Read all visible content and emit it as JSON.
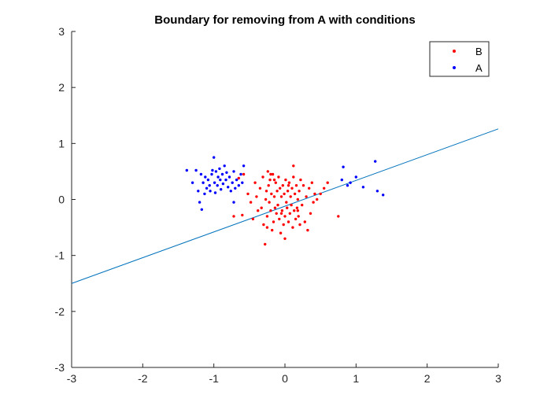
{
  "chart_data": {
    "type": "scatter",
    "title": "Boundary for removing from A with conditions",
    "xlabel": "",
    "ylabel": "",
    "xlim": [
      -3,
      3
    ],
    "ylim": [
      -3,
      3
    ],
    "x_ticks": [
      "-3",
      "-2",
      "-1",
      "0",
      "1",
      "2",
      "3"
    ],
    "y_ticks": [
      "3",
      "2",
      "1",
      "0",
      "-1",
      "-2",
      "-3"
    ],
    "grid": false,
    "legend_position": "top-right",
    "colors": {
      "B": "#ff0000",
      "A": "#0000ff",
      "line": "#0072bd",
      "axes": "#262626"
    },
    "series": [
      {
        "name": "B",
        "color": "#ff0000",
        "points": [
          [
            -0.72,
            -0.3
          ],
          [
            -0.65,
            0.38
          ],
          [
            -0.6,
            -0.28
          ],
          [
            -0.58,
            0.45
          ],
          [
            -0.52,
            0.1
          ],
          [
            -0.48,
            -0.05
          ],
          [
            -0.45,
            -0.35
          ],
          [
            -0.42,
            0.3
          ],
          [
            -0.4,
            0.05
          ],
          [
            -0.38,
            -0.2
          ],
          [
            -0.35,
            0.2
          ],
          [
            -0.33,
            -0.15
          ],
          [
            -0.31,
            0.4
          ],
          [
            -0.3,
            -0.45
          ],
          [
            -0.28,
            -0.8
          ],
          [
            -0.27,
            0.0
          ],
          [
            -0.26,
            0.15
          ],
          [
            -0.25,
            -0.3
          ],
          [
            -0.24,
            0.5
          ],
          [
            -0.23,
            0.25
          ],
          [
            -0.22,
            -0.05
          ],
          [
            -0.21,
            0.35
          ],
          [
            -0.2,
            -0.2
          ],
          [
            -0.19,
            0.1
          ],
          [
            -0.18,
            -0.55
          ],
          [
            -0.17,
            0.45
          ],
          [
            -0.16,
            -0.4
          ],
          [
            -0.15,
            0.05
          ],
          [
            -0.14,
            -0.15
          ],
          [
            -0.13,
            0.3
          ],
          [
            -0.12,
            -0.25
          ],
          [
            -0.11,
            0.15
          ],
          [
            -0.1,
            -0.1
          ],
          [
            -0.09,
            0.4
          ],
          [
            -0.08,
            -0.35
          ],
          [
            -0.07,
            0.2
          ],
          [
            -0.06,
            -0.6
          ],
          [
            -0.05,
            0.05
          ],
          [
            -0.04,
            -0.2
          ],
          [
            -0.03,
            0.25
          ],
          [
            -0.02,
            -0.45
          ],
          [
            -0.01,
            0.1
          ],
          [
            0.0,
            -0.3
          ],
          [
            0.01,
            0.35
          ],
          [
            0.02,
            -0.05
          ],
          [
            0.03,
            -0.15
          ],
          [
            0.04,
            0.15
          ],
          [
            0.05,
            -0.4
          ],
          [
            0.06,
            0.3
          ],
          [
            0.07,
            -0.25
          ],
          [
            0.08,
            0.05
          ],
          [
            0.09,
            -0.1
          ],
          [
            0.1,
            0.2
          ],
          [
            0.11,
            -0.5
          ],
          [
            0.12,
            0.4
          ],
          [
            0.13,
            -0.2
          ],
          [
            0.14,
            0.1
          ],
          [
            0.15,
            -0.35
          ],
          [
            0.16,
            0.25
          ],
          [
            0.17,
            -0.15
          ],
          [
            0.18,
            0.0
          ],
          [
            0.19,
            -0.3
          ],
          [
            0.2,
            0.15
          ],
          [
            0.21,
            -0.45
          ],
          [
            0.22,
            0.35
          ],
          [
            0.24,
            -0.1
          ],
          [
            0.26,
            0.25
          ],
          [
            0.28,
            -0.4
          ],
          [
            0.3,
            0.05
          ],
          [
            0.32,
            -0.55
          ],
          [
            0.34,
            0.2
          ],
          [
            0.36,
            -0.25
          ],
          [
            0.38,
            0.3
          ],
          [
            0.4,
            -0.05
          ],
          [
            0.42,
            0.1
          ],
          [
            0.45,
            0.0
          ],
          [
            0.5,
            0.1
          ],
          [
            0.55,
            0.2
          ],
          [
            0.6,
            0.3
          ],
          [
            0.75,
            -0.3
          ],
          [
            -0.2,
            0.45
          ],
          [
            -0.25,
            -0.5
          ],
          [
            0.0,
            -0.7
          ],
          [
            0.12,
            0.6
          ],
          [
            0.05,
            0.25
          ],
          [
            -0.05,
            -0.25
          ],
          [
            0.18,
            -0.2
          ],
          [
            -0.15,
            0.35
          ]
        ]
      },
      {
        "name": "A",
        "color": "#0000ff",
        "points": [
          [
            -1.38,
            0.52
          ],
          [
            -1.3,
            0.3
          ],
          [
            -1.25,
            0.52
          ],
          [
            -1.22,
            0.15
          ],
          [
            -1.2,
            -0.05
          ],
          [
            -1.18,
            0.45
          ],
          [
            -1.17,
            -0.18
          ],
          [
            -1.15,
            0.3
          ],
          [
            -1.13,
            0.1
          ],
          [
            -1.12,
            0.4
          ],
          [
            -1.1,
            0.2
          ],
          [
            -1.08,
            0.35
          ],
          [
            -1.06,
            0.25
          ],
          [
            -1.05,
            0.15
          ],
          [
            -1.03,
            0.45
          ],
          [
            -1.02,
            0.52
          ],
          [
            -1.0,
            0.75
          ],
          [
            -0.99,
            0.3
          ],
          [
            -0.98,
            0.12
          ],
          [
            -0.97,
            0.5
          ],
          [
            -0.95,
            0.25
          ],
          [
            -0.94,
            0.4
          ],
          [
            -0.92,
            0.55
          ],
          [
            -0.91,
            0.35
          ],
          [
            -0.9,
            0.18
          ],
          [
            -0.88,
            0.45
          ],
          [
            -0.87,
            0.28
          ],
          [
            -0.85,
            0.6
          ],
          [
            -0.83,
            0.35
          ],
          [
            -0.82,
            0.48
          ],
          [
            -0.8,
            0.22
          ],
          [
            -0.78,
            0.4
          ],
          [
            -0.76,
            0.15
          ],
          [
            -0.74,
            0.3
          ],
          [
            -0.72,
            0.5
          ],
          [
            -0.7,
            0.2
          ],
          [
            -0.68,
            0.35
          ],
          [
            -0.65,
            0.25
          ],
          [
            -0.62,
            0.45
          ],
          [
            -0.6,
            0.3
          ],
          [
            -0.58,
            0.6
          ],
          [
            -0.72,
            -0.05
          ],
          [
            0.8,
            0.35
          ],
          [
            0.82,
            0.58
          ],
          [
            0.88,
            0.25
          ],
          [
            0.92,
            0.3
          ],
          [
            1.0,
            0.4
          ],
          [
            1.1,
            0.22
          ],
          [
            1.27,
            0.68
          ],
          [
            1.3,
            0.15
          ],
          [
            1.38,
            0.08
          ]
        ]
      }
    ],
    "lines": [
      {
        "name": "",
        "color": "#0072bd",
        "x": [
          -3,
          3
        ],
        "y": [
          -1.5,
          1.26
        ]
      }
    ]
  }
}
